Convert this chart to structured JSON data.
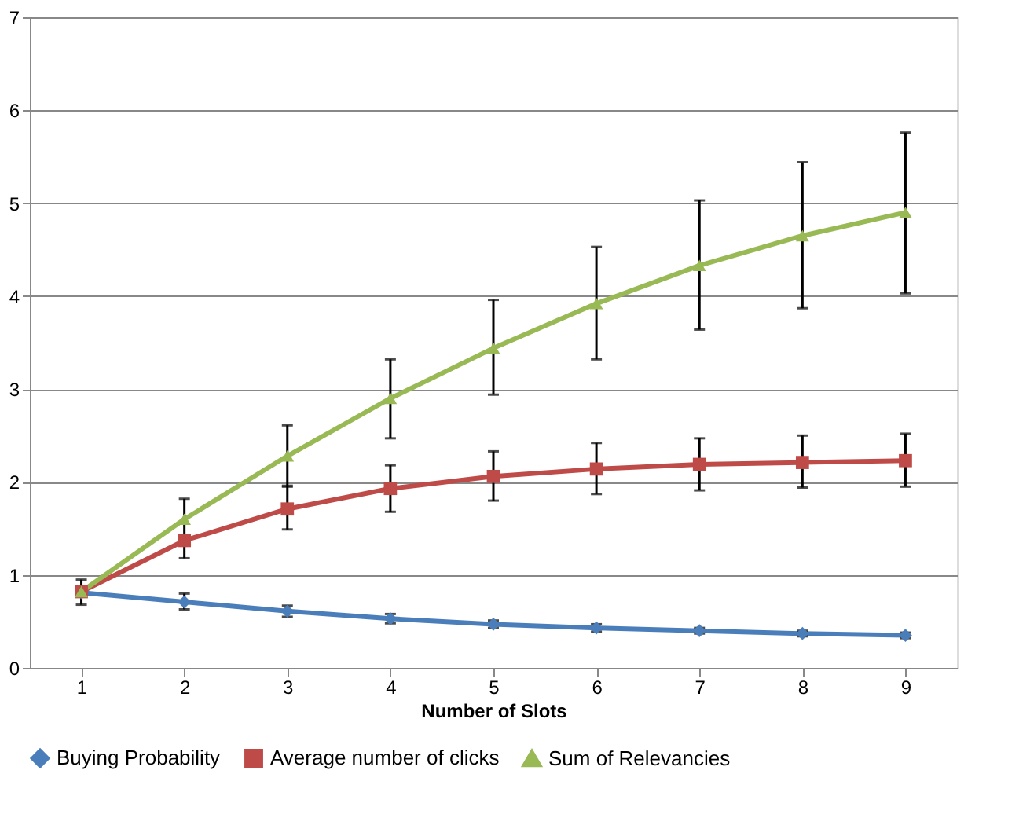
{
  "chart_data": {
    "type": "line",
    "xlabel": "Number of Slots",
    "categories": [
      "1",
      "2",
      "3",
      "4",
      "5",
      "6",
      "7",
      "8",
      "9"
    ],
    "ylim": [
      0,
      7
    ],
    "yticks": [
      0,
      1,
      2,
      3,
      4,
      5,
      6,
      7
    ],
    "grid": "y",
    "legend": "bottom",
    "series": [
      {
        "name": "Buying Probability",
        "color": "#4a7ebb",
        "marker": "diamond",
        "values": [
          0.81,
          0.71,
          0.61,
          0.53,
          0.47,
          0.43,
          0.4,
          0.37,
          0.35
        ],
        "errors": [
          null,
          [
            0.63,
            0.8
          ],
          [
            0.55,
            0.67
          ],
          [
            0.48,
            0.58
          ],
          [
            0.43,
            0.51
          ],
          [
            0.39,
            0.47
          ],
          [
            0.37,
            0.43
          ],
          [
            0.34,
            0.4
          ],
          [
            0.32,
            0.38
          ]
        ]
      },
      {
        "name": "Average number of clicks",
        "color": "#be4b48",
        "marker": "square",
        "values": [
          0.82,
          1.37,
          1.71,
          1.93,
          2.06,
          2.14,
          2.19,
          2.21,
          2.23
        ],
        "errors": [
          null,
          [
            1.18,
            1.82
          ],
          [
            1.49,
            1.96
          ],
          [
            1.68,
            2.18
          ],
          [
            1.8,
            2.33
          ],
          [
            1.87,
            2.42
          ],
          [
            1.91,
            2.47
          ],
          [
            1.94,
            2.5
          ],
          [
            1.95,
            2.52
          ]
        ]
      },
      {
        "name": "Sum of Relevancies",
        "color": "#98b954",
        "marker": "triangle",
        "values": [
          0.82,
          1.6,
          2.28,
          2.9,
          3.44,
          3.92,
          4.33,
          4.65,
          4.9
        ],
        "errors": [
          [
            0.68,
            0.95
          ],
          null,
          [
            1.95,
            2.61
          ],
          [
            2.47,
            3.32
          ],
          [
            2.94,
            3.96
          ],
          [
            3.32,
            4.53
          ],
          [
            3.64,
            5.03
          ],
          [
            3.87,
            5.44
          ],
          [
            4.03,
            5.76
          ]
        ]
      }
    ]
  }
}
